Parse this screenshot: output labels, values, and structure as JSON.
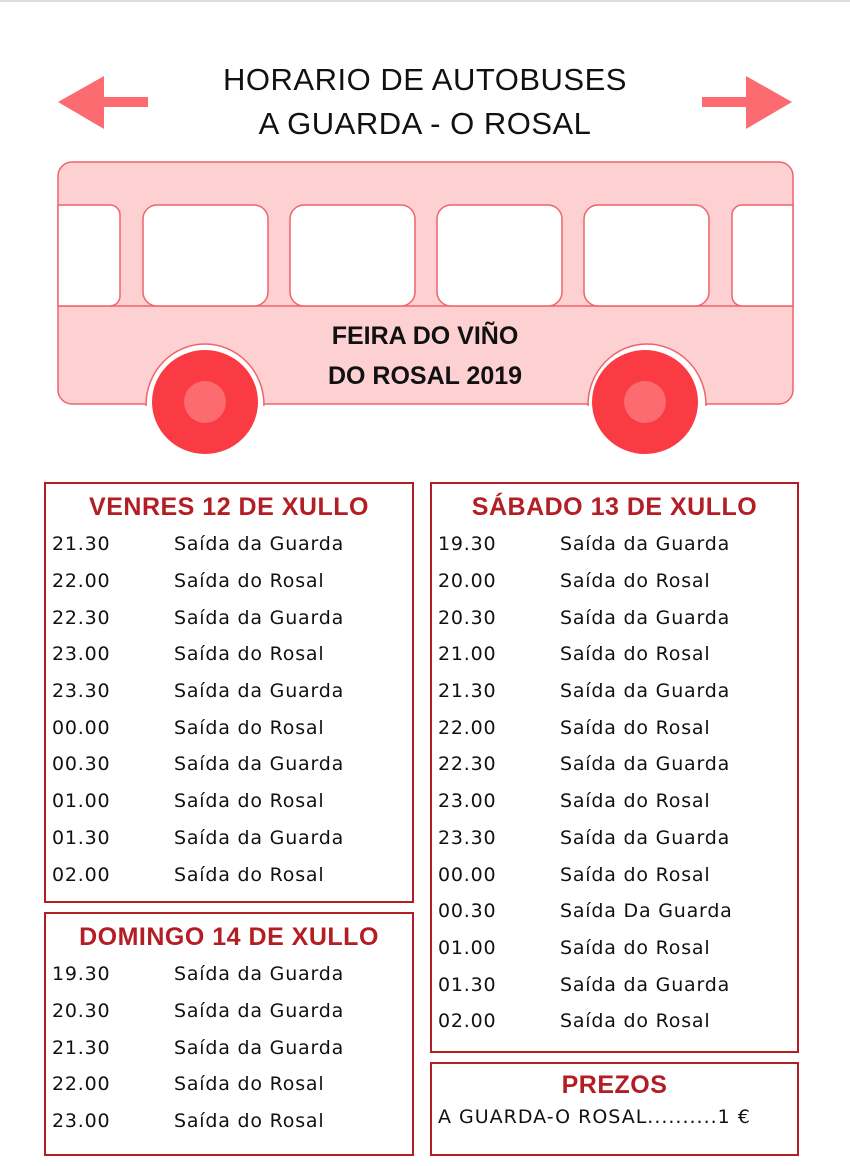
{
  "header": {
    "title_line1": "HORARIO DE AUTOBUSES",
    "title_line2": "A GUARDA - O ROSAL"
  },
  "bus": {
    "text_line1": "FEIRA DO VIÑO",
    "text_line2": "DO ROSAL 2019"
  },
  "colors": {
    "accent": "#b21e24",
    "bus_body": "#fdd0d2",
    "bus_outline": "#f0636b",
    "wheel": "#fb3b44",
    "arrow": "#fb6b70"
  },
  "icons": {
    "left": "arrow-left-icon",
    "right": "arrow-right-icon",
    "bus": "bus-illustration"
  },
  "venres": {
    "title": "VENRES 12 DE XULLO",
    "rows": [
      {
        "time": "21.30",
        "desc": "Saída da Guarda"
      },
      {
        "time": "22.00",
        "desc": "Saída do Rosal"
      },
      {
        "time": "22.30",
        "desc": "Saída da Guarda"
      },
      {
        "time": "23.00",
        "desc": "Saída do Rosal"
      },
      {
        "time": "23.30",
        "desc": "Saída da Guarda"
      },
      {
        "time": "00.00",
        "desc": "Saída do Rosal"
      },
      {
        "time": "00.30",
        "desc": "Saída da Guarda"
      },
      {
        "time": "01.00",
        "desc": "Saída do Rosal"
      },
      {
        "time": "01.30",
        "desc": "Saída da Guarda"
      },
      {
        "time": "02.00",
        "desc": "Saída do Rosal"
      }
    ]
  },
  "domingo": {
    "title": "DOMINGO 14 DE XULLO",
    "rows": [
      {
        "time": "19.30",
        "desc": "Saída da Guarda"
      },
      {
        "time": "20.30",
        "desc": "Saída da Guarda"
      },
      {
        "time": "21.30",
        "desc": "Saída da Guarda"
      },
      {
        "time": "22.00",
        "desc": "Saída do Rosal"
      },
      {
        "time": "23.00",
        "desc": "Saída do Rosal"
      }
    ]
  },
  "sabado": {
    "title": "SÁBADO 13 DE XULLO",
    "rows": [
      {
        "time": "19.30",
        "desc": "Saída da Guarda"
      },
      {
        "time": "20.00",
        "desc": "Saída do Rosal"
      },
      {
        "time": "20.30",
        "desc": "Saída da Guarda"
      },
      {
        "time": "21.00",
        "desc": "Saída do Rosal"
      },
      {
        "time": "21.30",
        "desc": "Saída da Guarda"
      },
      {
        "time": "22.00",
        "desc": "Saída do Rosal"
      },
      {
        "time": "22.30",
        "desc": "Saída da Guarda"
      },
      {
        "time": "23.00",
        "desc": "Saída do Rosal"
      },
      {
        "time": "23.30",
        "desc": "Saída da Guarda"
      },
      {
        "time": "00.00",
        "desc": "Saída do Rosal"
      },
      {
        "time": "00.30",
        "desc": "Saída Da Guarda"
      },
      {
        "time": "01.00",
        "desc": "Saída do Rosal"
      },
      {
        "time": "01.30",
        "desc": "Saída da Guarda"
      },
      {
        "time": "02.00",
        "desc": "Saída do Rosal"
      }
    ]
  },
  "prezos": {
    "title": "PREZOS",
    "line": "A GUARDA-O ROSAL..........1 €"
  }
}
